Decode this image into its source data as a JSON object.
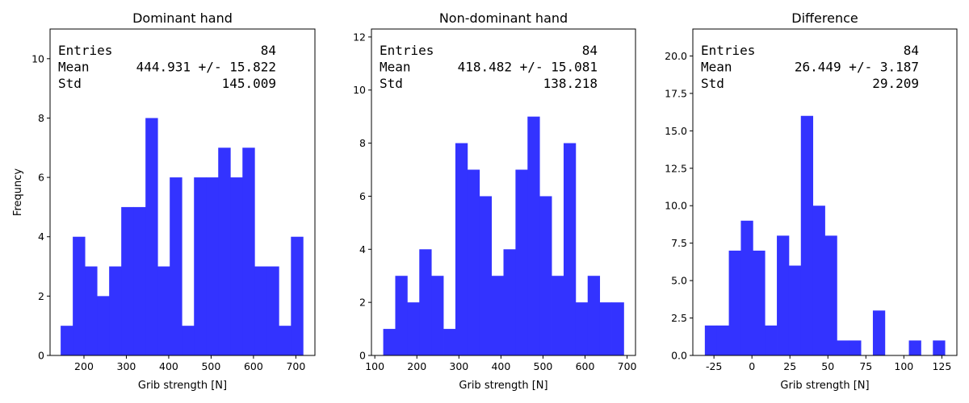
{
  "chart_data": [
    {
      "type": "bar",
      "title": "Dominant hand",
      "xlabel": "Grib strength [N]",
      "ylabel": "Frequncy",
      "bin_edges": [
        145.0,
        173.6,
        202.2,
        230.8,
        259.4,
        288.0,
        316.6,
        345.2,
        373.8,
        402.4,
        431.0,
        459.6,
        488.2,
        516.8,
        545.4,
        574.0,
        602.6,
        631.2,
        659.8,
        688.4,
        717.0
      ],
      "values": [
        1,
        4,
        3,
        2,
        3,
        5,
        5,
        8,
        3,
        6,
        1,
        6,
        6,
        7,
        6,
        7,
        3,
        3,
        1,
        4
      ],
      "xlim": [
        120,
        745
      ],
      "ylim": [
        0,
        11
      ],
      "xticks": [
        200,
        300,
        400,
        500,
        600,
        700
      ],
      "yticks": [
        0,
        2,
        4,
        6,
        8,
        10
      ],
      "color": "#3333ff",
      "stats": {
        "entries_label": "Entries",
        "entries_value": "84",
        "mean_label": "Mean",
        "mean_value": "444.931 +/- 15.822",
        "std_label": "Std",
        "std_value": "145.009"
      }
    },
    {
      "type": "bar",
      "title": "Non-dominant hand",
      "xlabel": "Grib strength [N]",
      "ylabel": "",
      "bin_edges": [
        120.0,
        148.6,
        177.2,
        205.8,
        234.4,
        263.0,
        291.6,
        320.2,
        348.8,
        377.4,
        406.0,
        434.6,
        463.2,
        491.8,
        520.4,
        549.0,
        577.6,
        606.2,
        634.8,
        663.4,
        692.0
      ],
      "values": [
        1,
        3,
        2,
        4,
        3,
        1,
        8,
        7,
        6,
        3,
        4,
        7,
        9,
        6,
        3,
        8,
        2,
        3,
        2,
        2
      ],
      "xlim": [
        92,
        720
      ],
      "ylim": [
        0,
        12.3
      ],
      "xticks": [
        100,
        200,
        300,
        400,
        500,
        600,
        700
      ],
      "yticks": [
        0,
        2,
        4,
        6,
        8,
        10,
        12
      ],
      "color": "#3333ff",
      "stats": {
        "entries_label": "Entries",
        "entries_value": "84",
        "mean_label": "Mean",
        "mean_value": "418.482 +/- 15.081",
        "std_label": "Std",
        "std_value": "138.218"
      }
    },
    {
      "type": "bar",
      "title": "Difference",
      "xlabel": "Grib strength [N]",
      "ylabel": "",
      "bin_edges": [
        -31.0,
        -23.1,
        -15.2,
        -7.3,
        0.6,
        8.5,
        16.4,
        24.3,
        32.2,
        40.1,
        48.0,
        55.9,
        63.8,
        71.7,
        79.6,
        87.5,
        95.4,
        103.3,
        111.2,
        119.1,
        127.0
      ],
      "values": [
        2,
        2,
        7,
        9,
        7,
        2,
        8,
        6,
        16,
        10,
        8,
        1,
        1,
        0,
        3,
        0,
        0,
        1,
        0,
        1
      ],
      "xlim": [
        -38.9,
        134.9
      ],
      "ylim": [
        0,
        21.8
      ],
      "xticks": [
        -25,
        0,
        25,
        50,
        75,
        100,
        125
      ],
      "yticks": [
        0.0,
        2.5,
        5.0,
        7.5,
        10.0,
        12.5,
        15.0,
        17.5,
        20.0
      ],
      "color": "#3333ff",
      "stats": {
        "entries_label": "Entries",
        "entries_value": "84",
        "mean_label": "Mean",
        "mean_value": "26.449 +/- 3.187",
        "std_label": "Std",
        "std_value": "29.209"
      }
    }
  ]
}
